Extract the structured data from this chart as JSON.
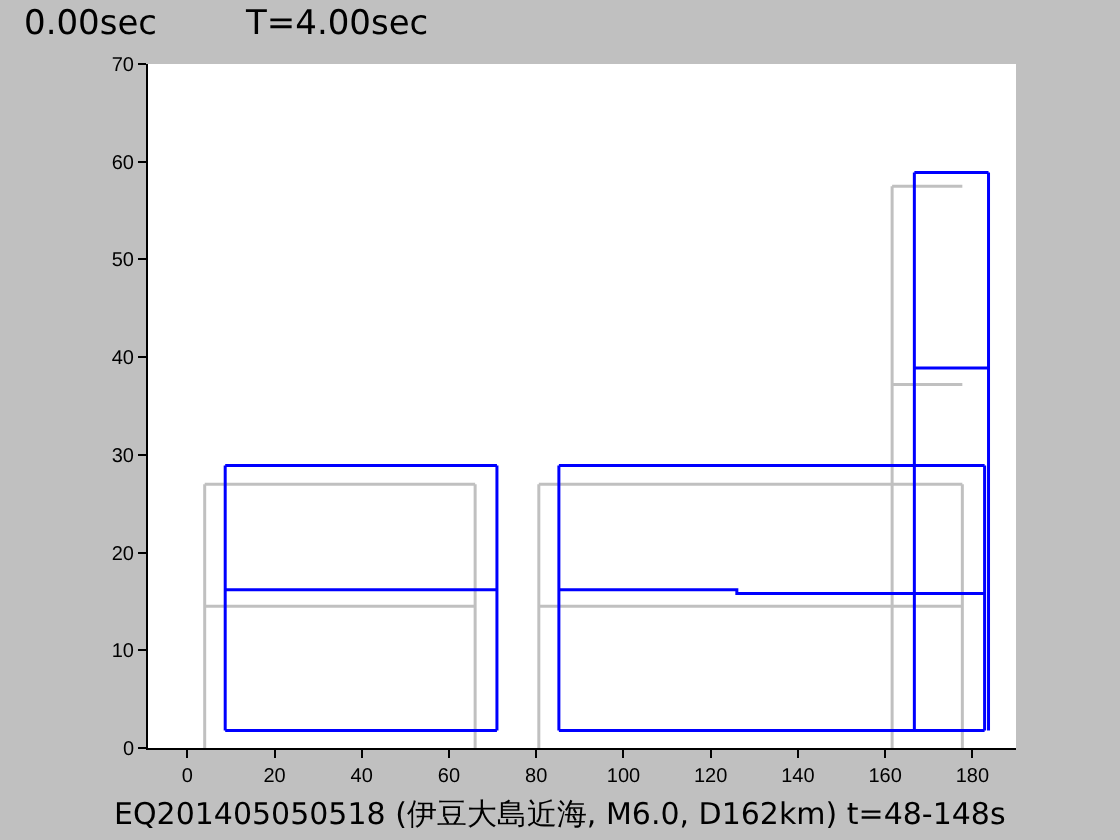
{
  "chart_data": {
    "type": "line",
    "xlim": [
      -9,
      190
    ],
    "xticks": [
      0,
      20,
      40,
      60,
      80,
      100,
      120,
      140,
      160,
      180
    ],
    "ylim": [
      0,
      70
    ],
    "yticks": [
      0,
      10,
      20,
      30,
      40,
      50,
      60,
      70
    ],
    "series": [
      {
        "color": "#c0c0c0",
        "x": [
          4,
          4
        ],
        "values": [
          0,
          27
        ]
      },
      {
        "color": "#c0c0c0",
        "x": [
          4,
          66
        ],
        "values": [
          27,
          27
        ]
      },
      {
        "color": "#c0c0c0",
        "x": [
          66,
          66
        ],
        "values": [
          27,
          0
        ]
      },
      {
        "color": "#c0c0c0",
        "x": [
          4,
          66
        ],
        "values": [
          14.5,
          14.5
        ]
      },
      {
        "color": "#c0c0c0",
        "x": [
          80.6,
          80.6
        ],
        "values": [
          0,
          27
        ]
      },
      {
        "color": "#c0c0c0",
        "x": [
          80.6,
          177.7
        ],
        "values": [
          27,
          27
        ]
      },
      {
        "color": "#c0c0c0",
        "x": [
          177.7,
          177.7
        ],
        "values": [
          27,
          0
        ]
      },
      {
        "color": "#c0c0c0",
        "x": [
          80.6,
          177.7
        ],
        "values": [
          14.5,
          14.5
        ]
      },
      {
        "color": "#c0c0c0",
        "x": [
          161.6,
          161.6
        ],
        "values": [
          0,
          57.5
        ]
      },
      {
        "color": "#c0c0c0",
        "x": [
          161.6,
          177.7
        ],
        "values": [
          57.5,
          57.5
        ]
      },
      {
        "color": "#c0c0c0",
        "x": [
          161.6,
          177.7
        ],
        "values": [
          37.2,
          37.2
        ]
      },
      {
        "color": "#0000ff",
        "x": [
          8.7,
          8.7
        ],
        "values": [
          1.8,
          28.9
        ]
      },
      {
        "color": "#0000ff",
        "x": [
          8.7,
          71
        ],
        "values": [
          28.9,
          28.9
        ]
      },
      {
        "color": "#0000ff",
        "x": [
          71,
          71
        ],
        "values": [
          28.9,
          1.8
        ]
      },
      {
        "color": "#0000ff",
        "x": [
          8.7,
          71
        ],
        "values": [
          1.8,
          1.8
        ]
      },
      {
        "color": "#0000ff",
        "x": [
          8.7,
          71
        ],
        "values": [
          16.2,
          16.2
        ]
      },
      {
        "color": "#0000ff",
        "x": [
          85.2,
          85.2
        ],
        "values": [
          1.8,
          28.9
        ]
      },
      {
        "color": "#0000ff",
        "x": [
          85.2,
          182.8
        ],
        "values": [
          28.9,
          28.9
        ]
      },
      {
        "color": "#0000ff",
        "x": [
          182.8,
          182.8
        ],
        "values": [
          28.9,
          1.8
        ]
      },
      {
        "color": "#0000ff",
        "x": [
          85.2,
          182.8
        ],
        "values": [
          1.8,
          1.8
        ]
      },
      {
        "type": "step",
        "color": "#0000ff",
        "x": [
          85.2,
          126,
          182.8
        ],
        "values": [
          16.2,
          15.8,
          15.8
        ]
      },
      {
        "color": "#0000ff",
        "x": [
          166.7,
          166.7
        ],
        "values": [
          1.8,
          58.9
        ]
      },
      {
        "color": "#0000ff",
        "x": [
          166.7,
          183.7
        ],
        "values": [
          58.9,
          58.9
        ]
      },
      {
        "color": "#0000ff",
        "x": [
          183.7,
          183.7
        ],
        "values": [
          58.9,
          1.8
        ]
      },
      {
        "color": "#0000ff",
        "x": [
          166.7,
          183.7
        ],
        "values": [
          38.9,
          38.9
        ]
      }
    ],
    "annotations": [
      "0.00sec",
      "T=4.00sec",
      "EQ201405050518 (伊豆大島近海, M6.0, D162km) t=48-148s"
    ]
  }
}
